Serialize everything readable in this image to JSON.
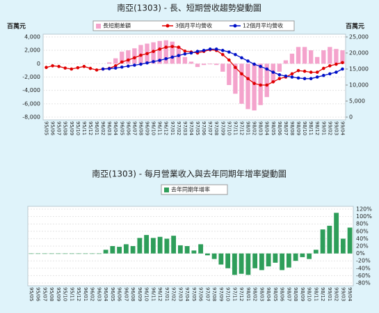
{
  "chart_data": [
    {
      "type": "combo",
      "title": "南亞(1303) -  長、短期營收趨勢變動圖",
      "y_label": "百萬元",
      "y2_label": "百萬元",
      "categories": [
        "95/05",
        "95/06",
        "95/07",
        "95/08",
        "95/09",
        "95/10",
        "95/11",
        "95/12",
        "96/01",
        "96/02",
        "96/03",
        "96/04",
        "96/05",
        "96/06",
        "96/07",
        "96/08",
        "96/09",
        "96/10",
        "96/11",
        "96/12",
        "97/01",
        "97/02",
        "97/03",
        "97/04",
        "97/05",
        "97/06",
        "97/07",
        "97/08",
        "97/09",
        "97/10",
        "97/11",
        "97/12",
        "98/01",
        "98/02",
        "98/03",
        "98/04",
        "98/05",
        "98/06",
        "98/07",
        "98/08",
        "98/09",
        "98/10",
        "98/11",
        "98/12",
        "99/01",
        "99/02",
        "99/03",
        "99/04"
      ],
      "series": [
        {
          "name": "長短期差額",
          "type": "bar",
          "color": "#f4a3cc",
          "values": [
            null,
            null,
            null,
            null,
            null,
            null,
            null,
            null,
            null,
            null,
            200,
            800,
            1800,
            2000,
            2300,
            2800,
            3000,
            3200,
            3400,
            3500,
            3300,
            2600,
            1000,
            300,
            -500,
            -200,
            -100,
            -200,
            -1200,
            -3200,
            -4500,
            -6000,
            -6800,
            -7000,
            -6200,
            -5000,
            -2800,
            -1200,
            500,
            1500,
            2500,
            2500,
            2000,
            1000,
            2000,
            2500,
            2200,
            2000
          ]
        },
        {
          "name": "3個月平均營收",
          "type": "line",
          "axis": "y2",
          "color": "#e00000",
          "values": [
            15500,
            16000,
            15800,
            15300,
            15000,
            15400,
            15800,
            15200,
            14700,
            15000,
            15200,
            16000,
            17200,
            17800,
            18500,
            19300,
            19800,
            20500,
            21200,
            21800,
            22000,
            21800,
            20600,
            20300,
            20000,
            20500,
            21000,
            20800,
            19500,
            17800,
            15500,
            13500,
            12000,
            10500,
            10000,
            10000,
            11000,
            12000,
            12500,
            13500,
            14500,
            14300,
            14000,
            14000,
            15200,
            16000,
            16500,
            17000
          ]
        },
        {
          "name": "12個月平均營收",
          "type": "line",
          "axis": "y2",
          "color": "#0010c8",
          "values": [
            null,
            null,
            null,
            null,
            null,
            null,
            null,
            null,
            null,
            15000,
            15100,
            15300,
            15600,
            15900,
            16200,
            16500,
            16900,
            17300,
            17700,
            18200,
            18700,
            19200,
            19700,
            20000,
            20500,
            20800,
            21200,
            21200,
            20800,
            20300,
            19500,
            18500,
            17500,
            16500,
            15800,
            15000,
            14000,
            13200,
            12800,
            12500,
            12200,
            12000,
            12000,
            12500,
            13000,
            13500,
            14000,
            15000
          ]
        }
      ],
      "ylim": [
        -8000,
        4000
      ],
      "yticks": [
        {
          "value": 4000,
          "label": "4,000"
        },
        {
          "value": 2000,
          "label": "2,000"
        },
        0,
        {
          "value": -2000,
          "label": "-2,000"
        },
        {
          "value": -4000,
          "label": "-4,000"
        },
        {
          "value": -6000,
          "label": "-6,000"
        },
        {
          "value": -8000,
          "label": "-8,000"
        }
      ],
      "y2lim": [
        0,
        25000
      ],
      "y2ticks": [
        {
          "value": 25000,
          "label": "25,000"
        },
        {
          "value": 20000,
          "label": "20,000"
        },
        {
          "value": 15000,
          "label": "15,000"
        },
        {
          "value": 10000,
          "label": "10,000"
        },
        {
          "value": 5000,
          "label": "5,000"
        },
        0
      ],
      "ytick_color": "#e00000"
    },
    {
      "type": "bar",
      "title": "南亞(1303) -  每月營業收入與去年同期年增率變動圖",
      "yaxis_position": "right",
      "categories": [
        "95/05",
        "95/06",
        "95/07",
        "95/08",
        "95/09",
        "95/10",
        "95/11",
        "95/12",
        "96/01",
        "96/02",
        "96/03",
        "96/04",
        "96/05",
        "96/06",
        "96/07",
        "96/08",
        "96/09",
        "96/10",
        "96/11",
        "96/12",
        "97/01",
        "97/02",
        "97/03",
        "97/04",
        "97/05",
        "97/06",
        "97/07",
        "97/08",
        "97/09",
        "97/10",
        "97/11",
        "97/12",
        "98/01",
        "98/02",
        "98/03",
        "98/04",
        "98/05",
        "98/06",
        "98/07",
        "98/08",
        "98/09",
        "98/10",
        "98/11",
        "98/12",
        "99/01",
        "99/02",
        "99/03",
        "99/04"
      ],
      "series": [
        {
          "name": "去年同期年增率",
          "type": "bar",
          "color": "#2e9e5a",
          "values": [
            0,
            0,
            0,
            0,
            0,
            0,
            0,
            0,
            0,
            0,
            0,
            10,
            20,
            18,
            25,
            20,
            42,
            50,
            42,
            45,
            40,
            48,
            22,
            20,
            8,
            25,
            -5,
            -15,
            -30,
            -40,
            -58,
            -55,
            -58,
            -40,
            -45,
            -35,
            -25,
            -45,
            -38,
            -20,
            -10,
            -15,
            10,
            65,
            75,
            110,
            40,
            70
          ]
        }
      ],
      "ylim": [
        -80,
        120
      ],
      "yticks": [
        {
          "value": 120,
          "label": "120%"
        },
        {
          "value": 100,
          "label": "100%"
        },
        {
          "value": 80,
          "label": "80%"
        },
        {
          "value": 60,
          "label": "60%"
        },
        {
          "value": 40,
          "label": "40%"
        },
        {
          "value": 20,
          "label": "20%"
        },
        {
          "value": 0,
          "label": "0%"
        },
        {
          "value": -20,
          "label": "-20%"
        },
        {
          "value": -40,
          "label": "-40%"
        },
        {
          "value": -60,
          "label": "-60%"
        },
        {
          "value": -80,
          "label": "-80%"
        }
      ]
    }
  ]
}
